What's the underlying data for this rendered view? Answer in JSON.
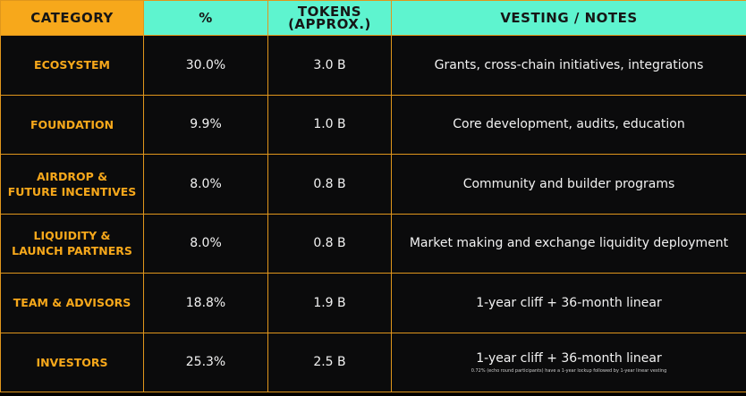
{
  "table": {
    "header": [
      [
        "CATEGORY"
      ],
      [
        "%"
      ],
      [
        "TOKENS",
        "(APPROX.)"
      ],
      [
        "VESTING / NOTES"
      ]
    ],
    "rows": [
      [
        [
          "ECOSYSTEM"
        ],
        "30.0%",
        "3.0 B",
        "Grants, cross-chain initiatives, integrations"
      ],
      [
        [
          "FOUNDATION"
        ],
        "9.9%",
        "1.0 B",
        "Core development, audits, education"
      ],
      [
        [
          "AIRDROP &",
          "FUTURE INCENTIVES"
        ],
        "8.0%",
        "0.8 B",
        "Community and builder programs"
      ],
      [
        [
          "LIQUIDITY &",
          "LAUNCH PARTNERS"
        ],
        "8.0%",
        "0.8 B",
        "Market making and exchange liquidity deployment"
      ],
      [
        [
          "TEAM & ADVISORS"
        ],
        "18.8%",
        "1.9 B",
        "1-year cliff + 36-month linear"
      ],
      [
        [
          "INVESTORS"
        ],
        "25.3%",
        "2.5 B",
        "1-year cliff + 36-month linear"
      ]
    ],
    "note": {
      "row": 5,
      "text": "0.72% (echo round participants) have a 1-year lockup followed by 1-year linear vesting"
    }
  }
}
